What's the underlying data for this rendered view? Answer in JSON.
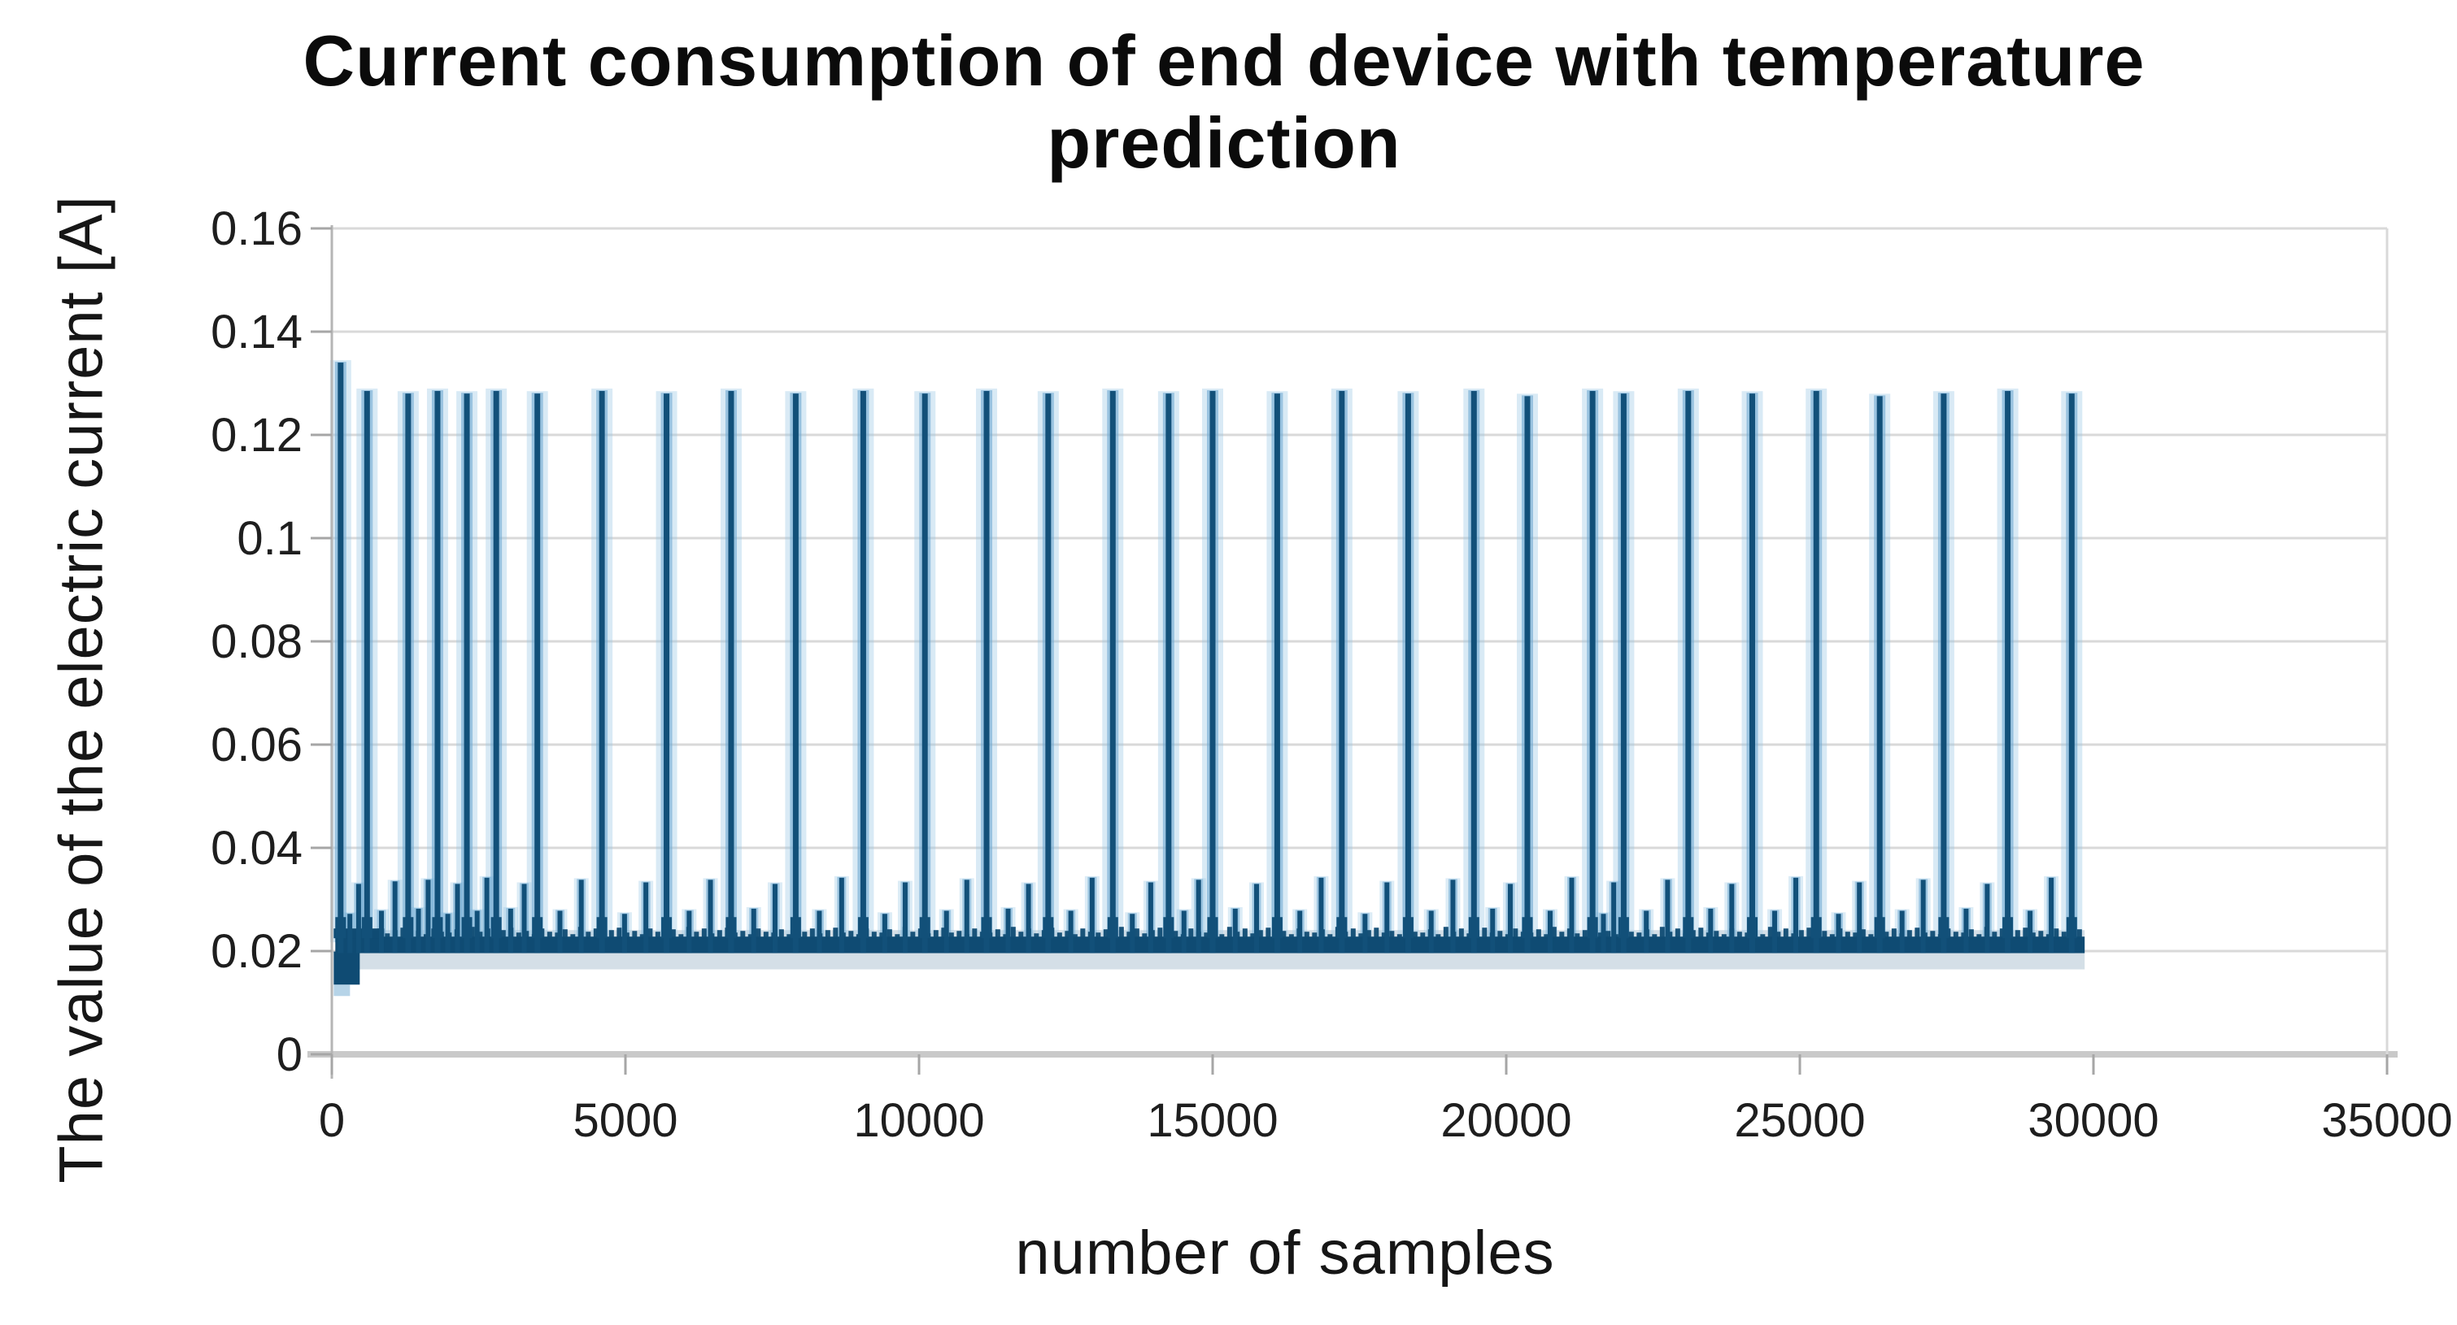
{
  "figure": {
    "title_line1": "Current consumption of end device with temperature",
    "title_line2": "prediction",
    "x_axis_title": "number of samples",
    "y_axis_title": "The value of the electric current [A]"
  },
  "chart_data": {
    "type": "line",
    "title": "Current consumption of end device with temperature prediction",
    "xlabel": "number of samples",
    "ylabel": "The value of the electric current [A]",
    "xlim": [
      0,
      35000
    ],
    "ylim": [
      0,
      0.16
    ],
    "grid": "horizontal",
    "legend": "none",
    "x_ticks": {
      "values": [
        0,
        5000,
        10000,
        15000,
        20000,
        25000,
        30000,
        35000
      ],
      "labels": [
        "0",
        "5000",
        "10000",
        "15000",
        "20000",
        "25000",
        "30000",
        "35000"
      ]
    },
    "y_ticks": {
      "values": [
        0,
        0.02,
        0.04,
        0.06,
        0.08,
        0.1,
        0.12,
        0.14,
        0.16
      ],
      "labels": [
        "0",
        "0.02",
        "0.04",
        "0.06",
        "0.08",
        "0.1",
        "0.12",
        "0.14",
        "0.16"
      ]
    },
    "data_start_sample": 60,
    "data_end_sample": 29850,
    "baseline_band_A": [
      0.0196,
      0.0228
    ],
    "start_transient": {
      "sample_range": [
        60,
        480
      ],
      "dip_to_A": 0.0135
    },
    "colors": {
      "spike_core": "#125079",
      "spike_mid_halo": "#6ea9d2",
      "spike_glow": "#9cc8e6",
      "baseline_band": "#0f4b73",
      "gridline": "#d9d9d9",
      "zero_axis": "#c9c9c9",
      "y_axis_line": "#b5b5b5",
      "tick": "#a6a6a6",
      "tick_text": "#1e1e1e",
      "title_text": "#0b0b0b"
    },
    "series": [
      {
        "name": "electric current",
        "color": "#125079",
        "tall_spikes": [
          [
            150,
            0.134
          ],
          [
            600,
            0.1285
          ],
          [
            1300,
            0.128
          ],
          [
            1800,
            0.1285
          ],
          [
            2300,
            0.128
          ],
          [
            2800,
            0.1285
          ],
          [
            3500,
            0.128
          ],
          [
            4600,
            0.1285
          ],
          [
            5700,
            0.128
          ],
          [
            6800,
            0.1285
          ],
          [
            7900,
            0.128
          ],
          [
            9050,
            0.1285
          ],
          [
            10100,
            0.128
          ],
          [
            11150,
            0.1285
          ],
          [
            12200,
            0.128
          ],
          [
            13300,
            0.1285
          ],
          [
            14250,
            0.128
          ],
          [
            15000,
            0.1285
          ],
          [
            16100,
            0.128
          ],
          [
            17200,
            0.1285
          ],
          [
            18330,
            0.128
          ],
          [
            19450,
            0.1285
          ],
          [
            20360,
            0.1275
          ],
          [
            21470,
            0.1285
          ],
          [
            22000,
            0.128
          ],
          [
            23100,
            0.1285
          ],
          [
            24190,
            0.128
          ],
          [
            25280,
            0.1285
          ],
          [
            26360,
            0.1275
          ],
          [
            27450,
            0.128
          ],
          [
            28540,
            0.1285
          ],
          [
            29630,
            0.128
          ]
        ],
        "small_spikes": [
          [
            307,
            0.0272
          ],
          [
            456,
            0.033
          ],
          [
            845,
            0.0278
          ],
          [
            1076,
            0.0335
          ],
          [
            1475,
            0.0282
          ],
          [
            1640,
            0.0338
          ],
          [
            1975,
            0.0272
          ],
          [
            2140,
            0.033
          ],
          [
            2475,
            0.0278
          ],
          [
            2640,
            0.0342
          ],
          [
            3045,
            0.0282
          ],
          [
            3276,
            0.033
          ],
          [
            3885,
            0.0278
          ],
          [
            4248,
            0.0338
          ],
          [
            4985,
            0.0272
          ],
          [
            5348,
            0.0333
          ],
          [
            6085,
            0.0278
          ],
          [
            6448,
            0.0338
          ],
          [
            7185,
            0.0282
          ],
          [
            7548,
            0.033
          ],
          [
            8302,
            0.0278
          ],
          [
            8682,
            0.0342
          ],
          [
            9417,
            0.0272
          ],
          [
            9764,
            0.0333
          ],
          [
            10467,
            0.0278
          ],
          [
            10814,
            0.0338
          ],
          [
            11517,
            0.0282
          ],
          [
            11864,
            0.033
          ],
          [
            12585,
            0.0278
          ],
          [
            12948,
            0.0342
          ],
          [
            13632,
            0.0272
          ],
          [
            13946,
            0.0333
          ],
          [
            14512,
            0.0278
          ],
          [
            14760,
            0.0338
          ],
          [
            15385,
            0.0282
          ],
          [
            15748,
            0.033
          ],
          [
            16485,
            0.0278
          ],
          [
            16848,
            0.0342
          ],
          [
            17595,
            0.0272
          ],
          [
            17968,
            0.0333
          ],
          [
            18722,
            0.0278
          ],
          [
            19092,
            0.0338
          ],
          [
            19768,
            0.0282
          ],
          [
            20069,
            0.033
          ],
          [
            20748,
            0.0278
          ],
          [
            21115,
            0.0342
          ],
          [
            21655,
            0.0272
          ],
          [
            21830,
            0.0333
          ],
          [
            22385,
            0.0278
          ],
          [
            22748,
            0.0338
          ],
          [
            23481,
            0.0282
          ],
          [
            23841,
            0.033
          ],
          [
            24571,
            0.0278
          ],
          [
            24931,
            0.0342
          ],
          [
            25658,
            0.0272
          ],
          [
            26014,
            0.0333
          ],
          [
            26741,
            0.0278
          ],
          [
            27101,
            0.0338
          ],
          [
            27831,
            0.0282
          ],
          [
            28191,
            0.033
          ],
          [
            28921,
            0.0278
          ],
          [
            29281,
            0.0342
          ]
        ]
      }
    ]
  }
}
